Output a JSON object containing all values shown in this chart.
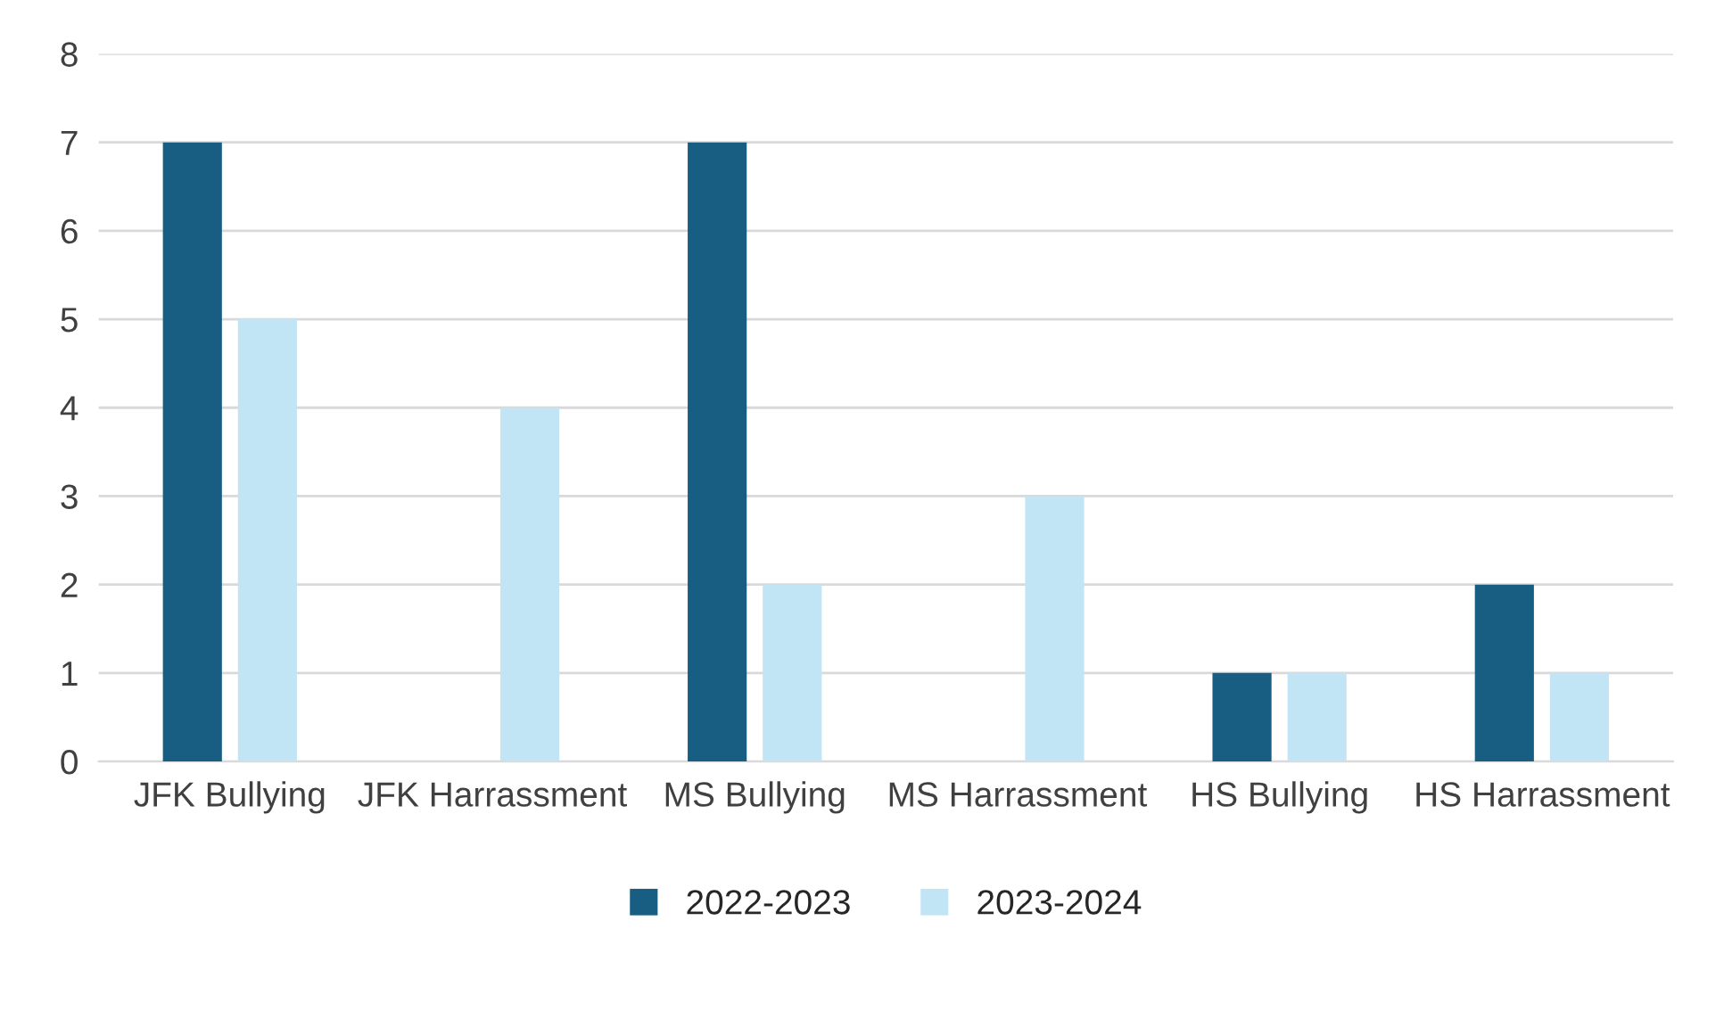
{
  "chart_data": {
    "type": "bar",
    "categories": [
      "JFK Bullying",
      "JFK Harrassment",
      "MS Bullying",
      "MS Harrassment",
      "HS Bullying",
      "HS Harrassment"
    ],
    "series": [
      {
        "name": "2022-2023",
        "color": "#175e82",
        "values": [
          7,
          0,
          7,
          0,
          1,
          2
        ]
      },
      {
        "name": "2023-2024",
        "color": "#c2e5f5",
        "values": [
          5,
          4,
          2,
          3,
          1,
          1
        ]
      }
    ],
    "ylim": [
      0,
      8
    ],
    "yticks": [
      0,
      1,
      2,
      3,
      4,
      5,
      6,
      7,
      8
    ],
    "grid": "y",
    "legend": "bottom"
  }
}
